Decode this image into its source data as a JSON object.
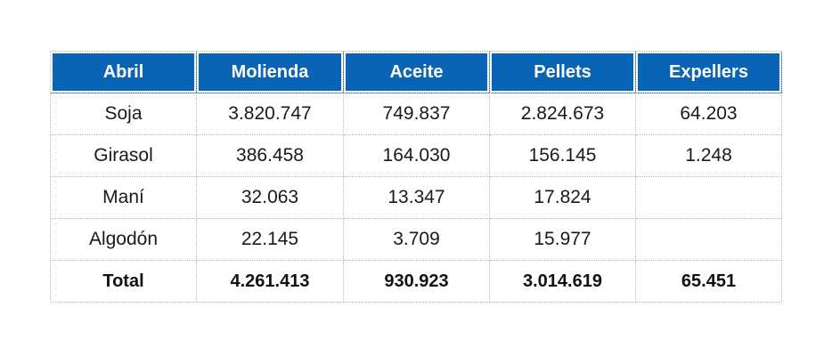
{
  "table": {
    "headers": [
      "Abril",
      "Molienda",
      "Aceite",
      "Pellets",
      "Expellers"
    ],
    "rows": [
      [
        "Soja",
        "3.820.747",
        "749.837",
        "2.824.673",
        "64.203"
      ],
      [
        "Girasol",
        "386.458",
        "164.030",
        "156.145",
        "1.248"
      ],
      [
        "Maní",
        "32.063",
        "13.347",
        "17.824",
        ""
      ],
      [
        "Algodón",
        "22.145",
        "3.709",
        "15.977",
        ""
      ]
    ],
    "total": [
      "Total",
      "4.261.413",
      "930.923",
      "3.014.619",
      "65.451"
    ]
  },
  "colors": {
    "header_background": "#0a64b5",
    "header_text": "#ffffff",
    "grid": "#b9b9b9"
  }
}
